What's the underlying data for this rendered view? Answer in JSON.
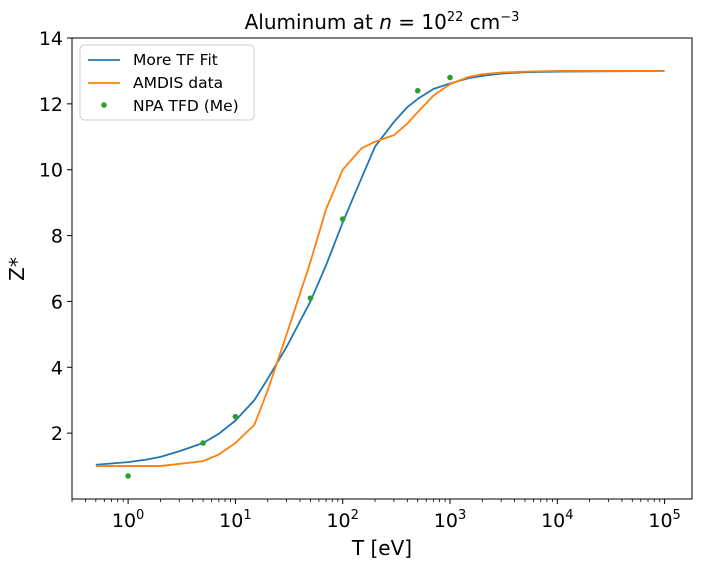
{
  "chart_data": {
    "type": "line",
    "title": {
      "prefix": "Aluminum at ",
      "var": "n",
      "eq": " = 10",
      "exp": "22",
      "unit": " cm",
      "unit_exp": "−3"
    },
    "xlabel": "T [eV]",
    "ylabel": "Z*",
    "xscale": "log",
    "xlim": [
      0.3,
      180000
    ],
    "ylim": [
      0,
      14
    ],
    "x_ticks": [
      {
        "value": 1,
        "base": "10",
        "exp": "0"
      },
      {
        "value": 10,
        "base": "10",
        "exp": "1"
      },
      {
        "value": 100,
        "base": "10",
        "exp": "2"
      },
      {
        "value": 1000,
        "base": "10",
        "exp": "3"
      },
      {
        "value": 10000,
        "base": "10",
        "exp": "4"
      },
      {
        "value": 100000,
        "base": "10",
        "exp": "5"
      }
    ],
    "y_ticks": [
      2,
      4,
      6,
      8,
      10,
      12,
      14
    ],
    "grid": false,
    "legend_position": "upper-left",
    "series": [
      {
        "name": "More TF Fit",
        "kind": "line",
        "color": "#1f77b4",
        "points": [
          [
            0.5,
            1.04
          ],
          [
            1,
            1.12
          ],
          [
            1.5,
            1.2
          ],
          [
            2,
            1.28
          ],
          [
            3,
            1.45
          ],
          [
            5,
            1.7
          ],
          [
            7,
            1.98
          ],
          [
            10,
            2.38
          ],
          [
            15,
            3.0
          ],
          [
            20,
            3.65
          ],
          [
            30,
            4.62
          ],
          [
            50,
            6.0
          ],
          [
            70,
            7.1
          ],
          [
            100,
            8.4
          ],
          [
            150,
            9.75
          ],
          [
            200,
            10.7
          ],
          [
            300,
            11.45
          ],
          [
            400,
            11.9
          ],
          [
            500,
            12.15
          ],
          [
            700,
            12.45
          ],
          [
            1000,
            12.62
          ],
          [
            1500,
            12.78
          ],
          [
            2000,
            12.85
          ],
          [
            3000,
            12.92
          ],
          [
            5000,
            12.96
          ],
          [
            10000,
            12.98
          ],
          [
            100000,
            13.0
          ]
        ]
      },
      {
        "name": "AMDIS data",
        "kind": "line",
        "color": "#ff7f0e",
        "points": [
          [
            0.5,
            1.0
          ],
          [
            1,
            1.0
          ],
          [
            2,
            1.0
          ],
          [
            5,
            1.15
          ],
          [
            7,
            1.35
          ],
          [
            10,
            1.7
          ],
          [
            15,
            2.25
          ],
          [
            20,
            3.3
          ],
          [
            30,
            5.0
          ],
          [
            50,
            7.2
          ],
          [
            70,
            8.8
          ],
          [
            100,
            10.0
          ],
          [
            150,
            10.65
          ],
          [
            200,
            10.85
          ],
          [
            300,
            11.05
          ],
          [
            400,
            11.4
          ],
          [
            500,
            11.75
          ],
          [
            700,
            12.25
          ],
          [
            1000,
            12.6
          ],
          [
            1500,
            12.82
          ],
          [
            2000,
            12.9
          ],
          [
            3000,
            12.95
          ],
          [
            5000,
            12.98
          ],
          [
            10000,
            13.0
          ],
          [
            100000,
            13.0
          ]
        ]
      },
      {
        "name": "NPA TFD (Me)",
        "kind": "scatter",
        "color": "#2ca02c",
        "points": [
          [
            1,
            0.7
          ],
          [
            5,
            1.7
          ],
          [
            10,
            2.5
          ],
          [
            50,
            6.1
          ],
          [
            100,
            8.5
          ],
          [
            500,
            12.4
          ],
          [
            1000,
            12.8
          ]
        ]
      }
    ]
  }
}
